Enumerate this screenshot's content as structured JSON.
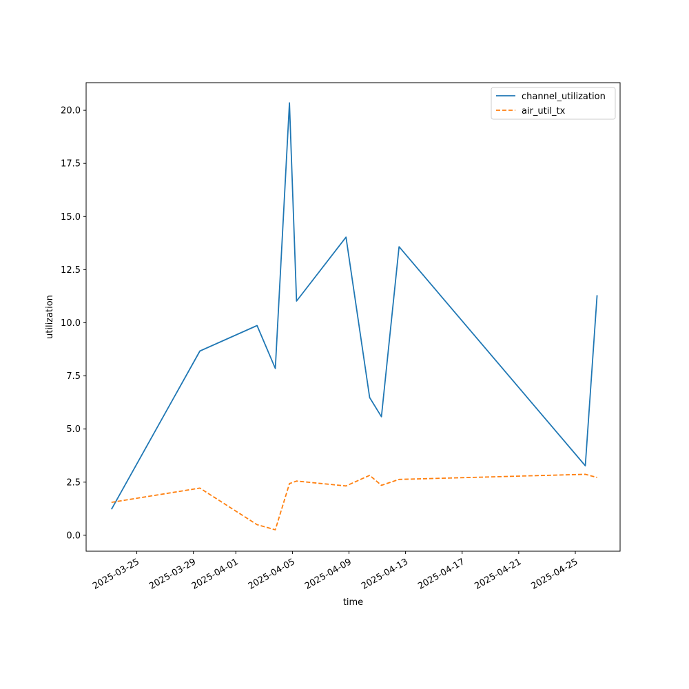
{
  "chart_data": {
    "type": "line",
    "title": "",
    "xlabel": "time",
    "ylabel": "utilization",
    "x_type": "date",
    "xlim": [
      "2025-03-21T10:00",
      "2025-04-28T04:00"
    ],
    "ylim": [
      -0.75,
      21.3
    ],
    "xticks": [
      "2025-03-25",
      "2025-03-29",
      "2025-04-01",
      "2025-04-05",
      "2025-04-09",
      "2025-04-13",
      "2025-04-17",
      "2025-04-21",
      "2025-04-25"
    ],
    "yticks": [
      0.0,
      2.5,
      5.0,
      7.5,
      10.0,
      12.5,
      15.0,
      17.5,
      20.0
    ],
    "ytick_labels": [
      "0.0",
      "2.5",
      "5.0",
      "7.5",
      "10.0",
      "12.5",
      "15.0",
      "17.5",
      "20.0"
    ],
    "grid": false,
    "legend": "top-right",
    "series": [
      {
        "name": "channel_utilization",
        "color": "#1f77b4",
        "style": "solid",
        "points": [
          {
            "x": "2025-03-23T05:00",
            "y": 1.22
          },
          {
            "x": "2025-03-29T11:00",
            "y": 8.67
          },
          {
            "x": "2025-04-02T12:00",
            "y": 9.87
          },
          {
            "x": "2025-04-03T19:00",
            "y": 7.85
          },
          {
            "x": "2025-04-04T19:00",
            "y": 20.35
          },
          {
            "x": "2025-04-05T07:00",
            "y": 11.02
          },
          {
            "x": "2025-04-08T19:00",
            "y": 14.03
          },
          {
            "x": "2025-04-10T11:00",
            "y": 6.48
          },
          {
            "x": "2025-04-11T07:00",
            "y": 5.58
          },
          {
            "x": "2025-04-12T13:00",
            "y": 13.58
          },
          {
            "x": "2025-04-25T17:00",
            "y": 3.27
          },
          {
            "x": "2025-04-26T13:00",
            "y": 11.3
          }
        ]
      },
      {
        "name": "air_util_tx",
        "color": "#ff7f0e",
        "style": "dashed",
        "points": [
          {
            "x": "2025-03-23T05:00",
            "y": 1.55
          },
          {
            "x": "2025-03-29T11:00",
            "y": 2.22
          },
          {
            "x": "2025-04-02T12:00",
            "y": 0.5
          },
          {
            "x": "2025-04-03T19:00",
            "y": 0.26
          },
          {
            "x": "2025-04-04T19:00",
            "y": 2.43
          },
          {
            "x": "2025-04-05T07:00",
            "y": 2.55
          },
          {
            "x": "2025-04-08T19:00",
            "y": 2.32
          },
          {
            "x": "2025-04-10T11:00",
            "y": 2.82
          },
          {
            "x": "2025-04-11T07:00",
            "y": 2.35
          },
          {
            "x": "2025-04-12T13:00",
            "y": 2.63
          },
          {
            "x": "2025-04-25T17:00",
            "y": 2.87
          },
          {
            "x": "2025-04-26T13:00",
            "y": 2.72
          }
        ]
      }
    ]
  }
}
